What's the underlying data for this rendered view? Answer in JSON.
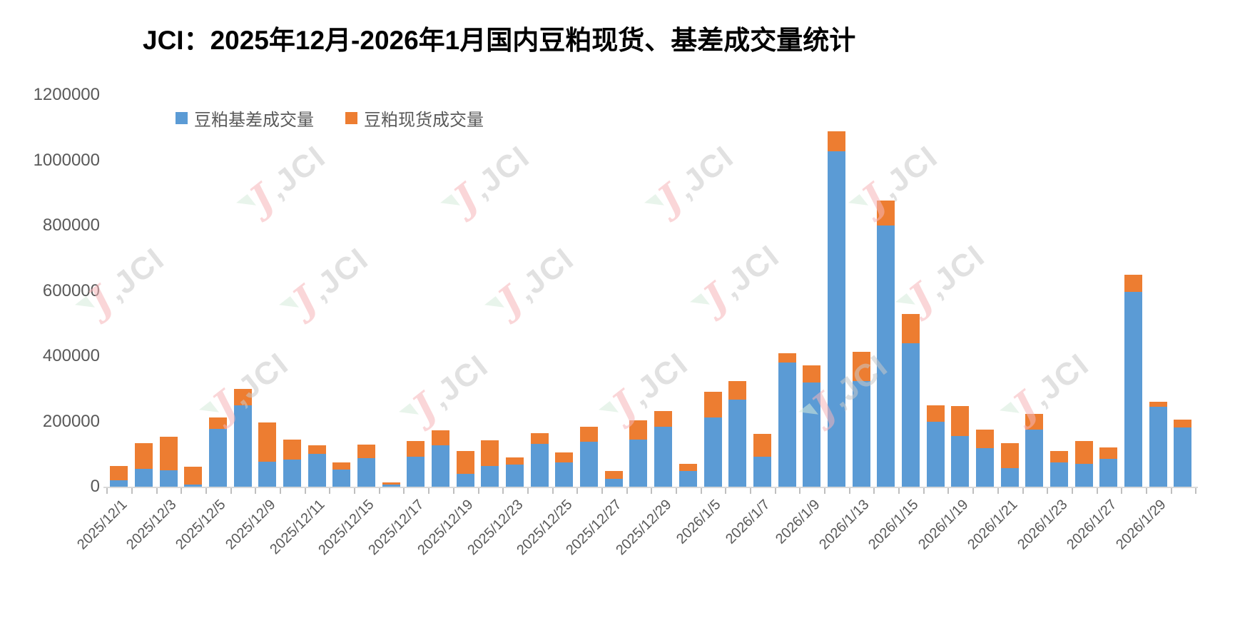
{
  "title": "JCI：2025年12月-2026年1月国内豆粕现货、基差成交量统计",
  "watermark": {
    "text": "JCI"
  },
  "colors": {
    "basis_blue": "#5B9BD5",
    "spot_orange": "#ED7D31",
    "axis_text": "#595959",
    "axis_line": "#d9d9d9",
    "tick_mark": "#bfbfbf",
    "title_text": "#000000"
  },
  "legend": {
    "items": [
      {
        "label": "豆粕基差成交量",
        "color": "#5B9BD5"
      },
      {
        "label": "豆粕现货成交量",
        "color": "#ED7D31"
      }
    ]
  },
  "y_axis": {
    "ticks": [
      "1200000",
      "1000000",
      "800000",
      "600000",
      "400000",
      "200000",
      "0"
    ],
    "min": 0,
    "max": 1200000,
    "step": 200000
  },
  "chart_data": {
    "type": "bar",
    "stacked": true,
    "grid": false,
    "legend_position": "top-left",
    "title": "JCI：2025年12月-2026年1月国内豆粕现货、基差成交量统计",
    "xlabel": "",
    "ylabel": "",
    "ylim": [
      0,
      1200000
    ],
    "categories": [
      "2025/12/1",
      "2025/12/2",
      "2025/12/3",
      "2025/12/4",
      "2025/12/5",
      "2025/12/8",
      "2025/12/9",
      "2025/12/10",
      "2025/12/11",
      "2025/12/12",
      "2025/12/15",
      "2025/12/16",
      "2025/12/17",
      "2025/12/18",
      "2025/12/19",
      "2025/12/22",
      "2025/12/23",
      "2025/12/24",
      "2025/12/25",
      "2025/12/26",
      "2025/12/27",
      "2025/12/28",
      "2025/12/29",
      "2025/12/30",
      "2026/1/5",
      "2026/1/6",
      "2026/1/7",
      "2026/1/8",
      "2026/1/9",
      "2026/1/12",
      "2026/1/13",
      "2026/1/14",
      "2026/1/15",
      "2026/1/16",
      "2026/1/19",
      "2026/1/20",
      "2026/1/21",
      "2026/1/22",
      "2026/1/23",
      "2026/1/26",
      "2026/1/27",
      "2026/1/28",
      "2026/1/29",
      "2026/1/30"
    ],
    "visible_tick_labels": [
      "2025/12/1",
      "2025/12/3",
      "2025/12/5",
      "2025/12/9",
      "2025/12/11",
      "2025/12/15",
      "2025/12/17",
      "2025/12/19",
      "2025/12/23",
      "2025/12/25",
      "2025/12/27",
      "2025/12/29",
      "2026/1/5",
      "2026/1/7",
      "2026/1/9",
      "2026/1/13",
      "2026/1/15",
      "2026/1/19",
      "2026/1/21",
      "2026/1/23",
      "2026/1/27",
      "2026/1/29"
    ],
    "series": [
      {
        "name": "豆粕基差成交量",
        "color": "#5B9BD5",
        "values": [
          19000,
          55000,
          50000,
          7000,
          177000,
          250000,
          77000,
          82000,
          101000,
          52000,
          88000,
          6000,
          92000,
          126000,
          39000,
          64000,
          68000,
          132000,
          75000,
          137000,
          23000,
          144000,
          183000,
          49000,
          212000,
          266000,
          92000,
          380000,
          319000,
          1027000,
          324000,
          799000,
          440000,
          200000,
          155000,
          118000,
          57000,
          174000,
          75000,
          71000,
          86000,
          596000,
          244000,
          181000
        ]
      },
      {
        "name": "豆粕现货成交量",
        "color": "#ED7D31",
        "values": [
          45000,
          78000,
          103000,
          54000,
          35000,
          50000,
          119000,
          62000,
          26000,
          23000,
          42000,
          8000,
          47000,
          46000,
          71000,
          77000,
          22000,
          31000,
          29000,
          46000,
          25000,
          59000,
          49000,
          20000,
          78000,
          58000,
          69000,
          29000,
          53000,
          62000,
          90000,
          78000,
          88000,
          50000,
          92000,
          56000,
          76000,
          49000,
          35000,
          68000,
          34000,
          54000,
          16000,
          24000
        ]
      }
    ]
  }
}
